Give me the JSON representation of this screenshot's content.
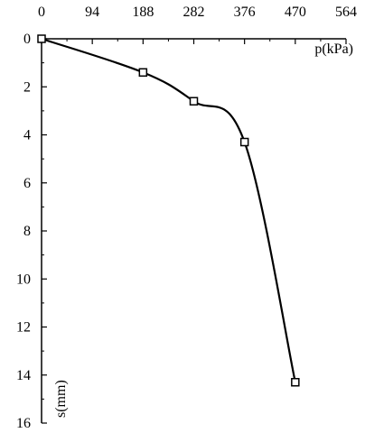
{
  "chart_data": {
    "type": "line",
    "title": "",
    "xlabel": "p(kPa)",
    "ylabel": "s(mm)",
    "x_axis_position": "top",
    "y_axis_inverted": true,
    "xlim": [
      0,
      564
    ],
    "ylim": [
      0,
      16
    ],
    "xticks": [
      0,
      94,
      188,
      282,
      376,
      470,
      564
    ],
    "yticks": [
      0,
      2,
      4,
      6,
      8,
      10,
      12,
      14,
      16
    ],
    "grid": false,
    "legend": "none",
    "series": [
      {
        "marker": "open-square",
        "color": "#000000",
        "points": [
          {
            "x": 0,
            "y": 0
          },
          {
            "x": 188,
            "y": 1.4
          },
          {
            "x": 282,
            "y": 2.6
          },
          {
            "x": 376,
            "y": 4.3
          },
          {
            "x": 470,
            "y": 14.3
          }
        ]
      }
    ]
  }
}
